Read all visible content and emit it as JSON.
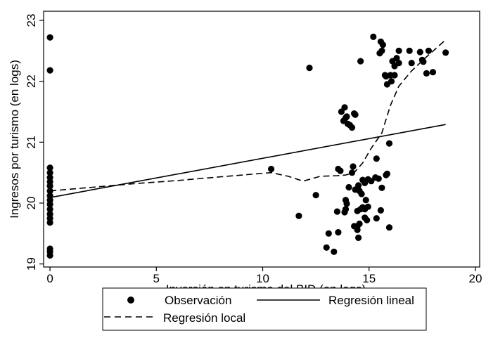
{
  "chart_data": {
    "type": "scatter",
    "xlabel": "Inversión en turismo del BID (en logs)",
    "ylabel": "Ingresos por turismo (en logs)",
    "xlim": [
      -0.3,
      20.2
    ],
    "ylim": [
      18.95,
      23.15
    ],
    "x_ticks": [
      0,
      5,
      10,
      15,
      20
    ],
    "y_ticks": [
      19,
      20,
      21,
      22,
      23
    ],
    "grid": false,
    "legend_position": "bottom",
    "series": [
      {
        "name": "Observación",
        "kind": "points",
        "color": "#000000",
        "points": [
          [
            0,
            22.72
          ],
          [
            0,
            22.18
          ],
          [
            0,
            20.58
          ],
          [
            0,
            20.5
          ],
          [
            0,
            20.42
          ],
          [
            0,
            20.35
          ],
          [
            0,
            20.28
          ],
          [
            0,
            20.2
          ],
          [
            0,
            20.12
          ],
          [
            0,
            20.05
          ],
          [
            0,
            19.98
          ],
          [
            0,
            19.9
          ],
          [
            0,
            19.82
          ],
          [
            0,
            19.75
          ],
          [
            0,
            19.68
          ],
          [
            0,
            19.25
          ],
          [
            0,
            19.2
          ],
          [
            0,
            19.14
          ],
          [
            10.4,
            20.56
          ],
          [
            11.7,
            19.79
          ],
          [
            12.2,
            22.22
          ],
          [
            12.5,
            20.13
          ],
          [
            13.1,
            19.5
          ],
          [
            13.0,
            19.27
          ],
          [
            13.35,
            19.2
          ],
          [
            13.55,
            19.52
          ],
          [
            13.5,
            19.86
          ],
          [
            13.55,
            20.56
          ],
          [
            13.65,
            20.53
          ],
          [
            13.7,
            21.5
          ],
          [
            13.85,
            21.57
          ],
          [
            13.9,
            21.4
          ],
          [
            13.8,
            21.35
          ],
          [
            13.95,
            21.42
          ],
          [
            14.0,
            21.3
          ],
          [
            14.1,
            21.28
          ],
          [
            14.2,
            21.24
          ],
          [
            14.3,
            21.47
          ],
          [
            14.35,
            21.45
          ],
          [
            13.9,
            20.05
          ],
          [
            13.95,
            19.99
          ],
          [
            13.9,
            19.9
          ],
          [
            13.85,
            19.85
          ],
          [
            14.05,
            20.26
          ],
          [
            14.25,
            20.6
          ],
          [
            14.2,
            20.5
          ],
          [
            14.3,
            19.62
          ],
          [
            14.35,
            20.22
          ],
          [
            14.45,
            19.56
          ],
          [
            14.5,
            19.43
          ],
          [
            14.45,
            19.62
          ],
          [
            14.55,
            19.66
          ],
          [
            14.45,
            19.87
          ],
          [
            14.6,
            19.9
          ],
          [
            14.55,
            20.2
          ],
          [
            14.65,
            20.15
          ],
          [
            14.7,
            20.38
          ],
          [
            14.8,
            20.33
          ],
          [
            14.7,
            19.93
          ],
          [
            14.8,
            19.9
          ],
          [
            14.85,
            20.05
          ],
          [
            14.8,
            19.76
          ],
          [
            14.95,
            19.94
          ],
          [
            14.9,
            19.72
          ],
          [
            14.6,
            22.33
          ],
          [
            14.5,
            20.29
          ],
          [
            14.95,
            20.39
          ],
          [
            15.1,
            20.36
          ],
          [
            15.3,
            20.42
          ],
          [
            15.2,
            22.73
          ],
          [
            15.35,
            20.73
          ],
          [
            15.45,
            20.4
          ],
          [
            15.55,
            19.88
          ],
          [
            15.6,
            20.25
          ],
          [
            15.35,
            19.75
          ],
          [
            15.55,
            22.65
          ],
          [
            15.5,
            22.46
          ],
          [
            15.65,
            22.6
          ],
          [
            15.6,
            22.5
          ],
          [
            15.8,
            20.46
          ],
          [
            15.85,
            20.48
          ],
          [
            15.75,
            22.1
          ],
          [
            15.8,
            22.08
          ],
          [
            15.85,
            21.95
          ],
          [
            15.95,
            20.98
          ],
          [
            15.95,
            19.6
          ],
          [
            16.0,
            22.1
          ],
          [
            16.05,
            22.0
          ],
          [
            16.1,
            22.33
          ],
          [
            16.2,
            22.1
          ],
          [
            16.2,
            22.25
          ],
          [
            16.3,
            22.38
          ],
          [
            16.4,
            22.3
          ],
          [
            16.4,
            22.5
          ],
          [
            16.9,
            22.5
          ],
          [
            17.0,
            22.3
          ],
          [
            17.4,
            22.48
          ],
          [
            17.5,
            22.35
          ],
          [
            17.55,
            22.32
          ],
          [
            17.7,
            22.13
          ],
          [
            17.8,
            22.5
          ],
          [
            18.0,
            22.15
          ],
          [
            18.6,
            22.47
          ]
        ]
      },
      {
        "name": "Regresión lineal",
        "kind": "line",
        "dash": "solid",
        "color": "#000000",
        "x": [
          0,
          18.6
        ],
        "y": [
          20.09,
          21.29
        ]
      },
      {
        "name": "Regresión local",
        "kind": "line",
        "dash": "dashed",
        "color": "#000000",
        "x": [
          0,
          2,
          4,
          6,
          8,
          10.4,
          11.2,
          11.9,
          12.7,
          13.5,
          13.9,
          14.3,
          14.7,
          15.1,
          15.6,
          16.0,
          16.4,
          17.0,
          17.6,
          18.6
        ],
        "y": [
          20.2,
          20.26,
          20.32,
          20.37,
          20.43,
          20.5,
          20.44,
          20.36,
          20.44,
          20.45,
          20.46,
          20.5,
          20.66,
          20.9,
          21.15,
          21.6,
          21.92,
          22.17,
          22.37,
          22.68
        ]
      }
    ]
  }
}
